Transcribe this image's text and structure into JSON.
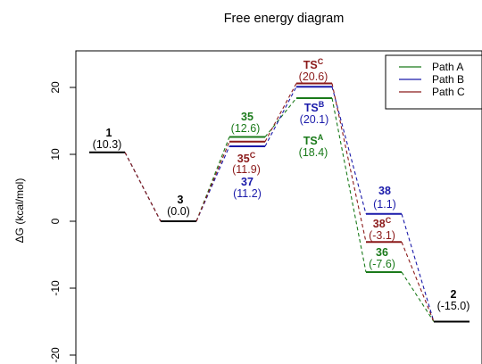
{
  "chart_data": {
    "type": "line",
    "title": "Free energy diagram",
    "ylabel": "ΔG  (kcal/mol)",
    "ylim": [
      -21,
      25
    ],
    "y_ticks": [
      20,
      10,
      0,
      -10,
      -20
    ],
    "grid": false,
    "legend_position": "top-right",
    "colors": {
      "Path A": "#1a7a1a",
      "Path B": "#1a1aaa",
      "Path C": "#8b1a1a",
      "common": "#000000"
    },
    "levels": [
      {
        "id": "lvl-1",
        "x": 1,
        "y": 10.3,
        "color": "common",
        "name": "1",
        "sup": "",
        "value_label": "(10.3)"
      },
      {
        "id": "lvl-3",
        "x": 2,
        "y": 0.0,
        "color": "common",
        "name": "3",
        "sup": "",
        "value_label": "(0.0)"
      },
      {
        "id": "lvl-35",
        "x": 3,
        "y": 12.6,
        "color": "Path A",
        "name": "35",
        "sup": "",
        "value_label": "(12.6)"
      },
      {
        "id": "lvl-35c",
        "x": 3,
        "y": 11.9,
        "color": "Path C",
        "name": "35",
        "sup": "C",
        "value_label": "(11.9)"
      },
      {
        "id": "lvl-37",
        "x": 3,
        "y": 11.2,
        "color": "Path B",
        "name": "37",
        "sup": "",
        "value_label": "(11.2)"
      },
      {
        "id": "lvl-tsc",
        "x": 4,
        "y": 20.6,
        "color": "Path C",
        "name": "TS",
        "sup": "C",
        "value_label": "(20.6)"
      },
      {
        "id": "lvl-tsb",
        "x": 4,
        "y": 20.1,
        "color": "Path B",
        "name": "TS",
        "sup": "B",
        "value_label": "(20.1)"
      },
      {
        "id": "lvl-tsa",
        "x": 4,
        "y": 18.4,
        "color": "Path A",
        "name": "TS",
        "sup": "A",
        "value_label": "(18.4)"
      },
      {
        "id": "lvl-38",
        "x": 5,
        "y": 1.1,
        "color": "Path B",
        "name": "38",
        "sup": "",
        "value_label": "(1.1)"
      },
      {
        "id": "lvl-38c",
        "x": 5,
        "y": -3.1,
        "color": "Path C",
        "name": "38",
        "sup": "C",
        "value_label": "(-3.1)"
      },
      {
        "id": "lvl-36",
        "x": 5,
        "y": -7.6,
        "color": "Path A",
        "name": "36",
        "sup": "",
        "value_label": "(-7.6)"
      },
      {
        "id": "lvl-2",
        "x": 6,
        "y": -15.0,
        "color": "common",
        "name": "2",
        "sup": "",
        "value_label": "(-15.0)"
      }
    ],
    "series": [
      {
        "name": "Path A",
        "x": [
          1,
          2,
          3,
          4,
          5,
          6
        ],
        "y": [
          10.3,
          0.0,
          12.6,
          18.4,
          -7.6,
          -15.0
        ]
      },
      {
        "name": "Path B",
        "x": [
          1,
          2,
          3,
          4,
          5,
          6
        ],
        "y": [
          10.3,
          0.0,
          11.2,
          20.1,
          1.1,
          -15.0
        ]
      },
      {
        "name": "Path C",
        "x": [
          1,
          2,
          3,
          4,
          5,
          6
        ],
        "y": [
          10.3,
          0.0,
          11.9,
          20.6,
          -3.1,
          -15.0
        ]
      }
    ]
  }
}
